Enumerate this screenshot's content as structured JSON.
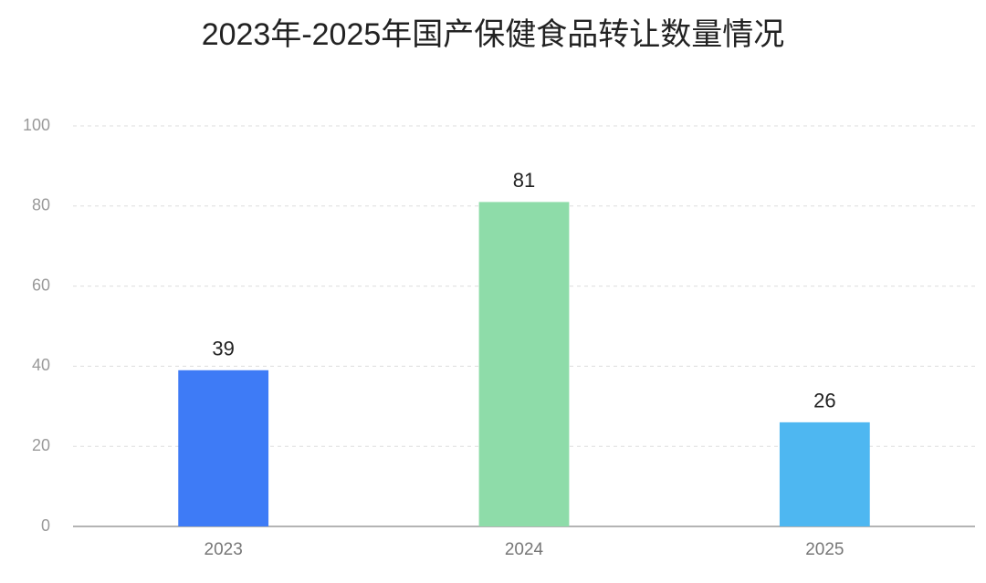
{
  "chart_data": {
    "type": "bar",
    "title": "2023年-2025年国产保健食品转让数量情况",
    "categories": [
      "2023",
      "2024",
      "2025"
    ],
    "values": [
      39,
      81,
      26
    ],
    "colors": [
      "#3e7bf6",
      "#8edca9",
      "#4eb7f1"
    ],
    "ylim": [
      0,
      100
    ],
    "yticks": [
      0,
      20,
      40,
      60,
      80,
      100
    ],
    "grid": true
  }
}
